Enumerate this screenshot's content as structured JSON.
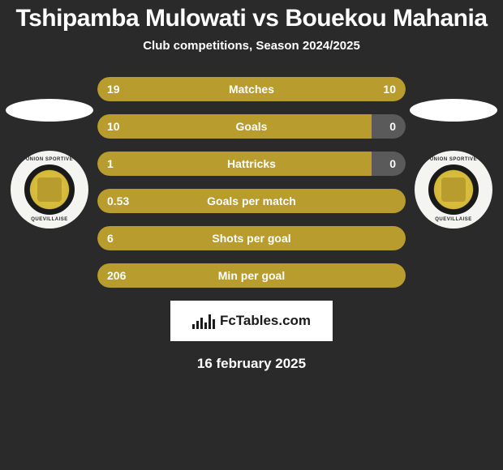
{
  "title": "Tshipamba Mulowati vs Bouekou Mahania",
  "subtitle": "Club competitions, Season 2024/2025",
  "player_left": {
    "club_ring_top": "UNION SPORTIVE",
    "club_ring_bottom": "QUEVILLAISE"
  },
  "player_right": {
    "club_ring_top": "UNION SPORTIVE",
    "club_ring_bottom": "QUEVILLAISE"
  },
  "stats": [
    {
      "label": "Matches",
      "left_val": "19",
      "right_val": "10",
      "left_pct": 65.5,
      "right_pct": 34.5,
      "left_color": "#b89c2e",
      "right_color": "#b89c2e"
    },
    {
      "label": "Goals",
      "left_val": "10",
      "right_val": "0",
      "left_pct": 89,
      "right_pct": 11,
      "left_color": "#b89c2e",
      "right_color": "#5a5a5a"
    },
    {
      "label": "Hattricks",
      "left_val": "1",
      "right_val": "0",
      "left_pct": 89,
      "right_pct": 11,
      "left_color": "#b89c2e",
      "right_color": "#5a5a5a"
    },
    {
      "label": "Goals per match",
      "left_val": "0.53",
      "right_val": "",
      "left_pct": 100,
      "right_pct": 0,
      "left_color": "#b89c2e",
      "right_color": "#b89c2e"
    },
    {
      "label": "Shots per goal",
      "left_val": "6",
      "right_val": "",
      "left_pct": 100,
      "right_pct": 0,
      "left_color": "#b89c2e",
      "right_color": "#b89c2e"
    },
    {
      "label": "Min per goal",
      "left_val": "206",
      "right_val": "",
      "left_pct": 100,
      "right_pct": 0,
      "left_color": "#b89c2e",
      "right_color": "#b89c2e"
    }
  ],
  "branding": {
    "text": "FcTables.com",
    "logo_bar_heights": [
      6,
      10,
      14,
      8,
      18,
      12
    ]
  },
  "date": "16 february 2025",
  "colors": {
    "background": "#2a2a2a",
    "text": "#ffffff",
    "bar_primary": "#b89c2e",
    "bar_neutral": "#5a5a5a"
  },
  "fonts": {
    "title_size": 30,
    "subtitle_size": 15,
    "stat_size": 14,
    "date_size": 17
  }
}
